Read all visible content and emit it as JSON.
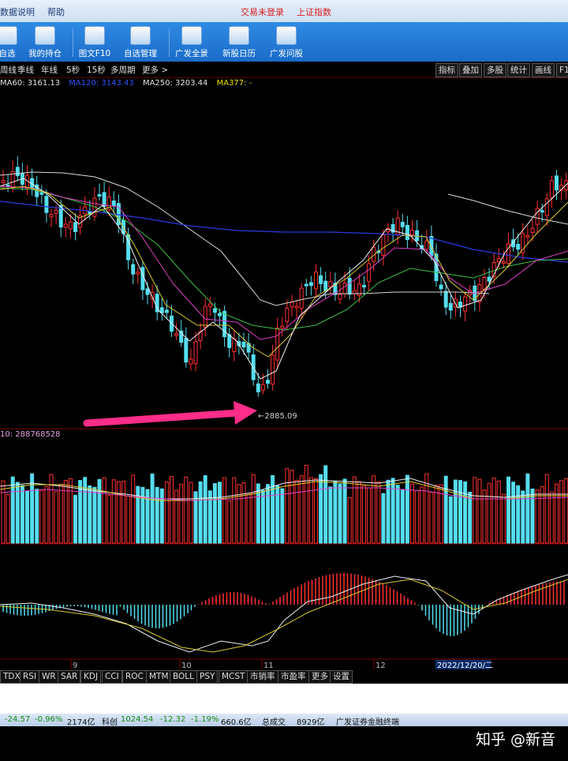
{
  "menu": {
    "items": [
      "数据说明",
      "帮助"
    ],
    "red_items": [
      "交易未登录",
      "上证指数"
    ]
  },
  "toolbar": [
    {
      "label": "自选"
    },
    {
      "label": "我的持仓"
    },
    {
      "label": "图文F10"
    },
    {
      "label": "自选管理"
    },
    {
      "label": "广发全景"
    },
    {
      "label": "新股日历"
    },
    {
      "label": "广发问股"
    }
  ],
  "periods": [
    "周线",
    "季线",
    "年线",
    "5秒",
    "15秒",
    "多周期",
    "更多 >"
  ],
  "right_buttons": [
    "指标",
    "叠加",
    "多股",
    "统计",
    "画线",
    "F1"
  ],
  "ma_legend": [
    {
      "text": "MA60: 3161.13",
      "color": "#e0e0e0"
    },
    {
      "text": "MA120: 3143.43",
      "color": "#3355ff"
    },
    {
      "text": "MA250: 3203.44",
      "color": "#e0e0e0"
    },
    {
      "text": "MA377: -",
      "color": "#e8e000"
    }
  ],
  "annotation": {
    "low_label": "2885.09"
  },
  "volume": {
    "legend": "10: 288768528"
  },
  "time_axis": {
    "labels": [
      "9",
      "10",
      "11",
      "12"
    ],
    "highlight": "2022/12/20/二"
  },
  "indicator_tabs": [
    "TDX",
    "RSI",
    "WR",
    "SAR",
    "KDJ",
    "CCI",
    "ROC",
    "MTM",
    "BOLL",
    "PSY",
    "MCST",
    "市销率",
    "市盈率",
    "更多",
    "设置"
  ],
  "status": {
    "item1_change": "-24.57",
    "item1_pct": "-0.96%",
    "item1_amt": "2174亿",
    "item2_name": "科创",
    "item2_val": "1024.54",
    "item2_change": "-12.32",
    "item2_pct": "-1.19%",
    "item2_amt": "660.6亿",
    "total_label": "总成交",
    "total_val": "8929亿",
    "brand": "广发证券金融终端"
  },
  "watermark": "知乎 @新音",
  "colors": {
    "up": "#ff3030",
    "down": "#55ddee",
    "accent": "#ff2d8a"
  }
}
